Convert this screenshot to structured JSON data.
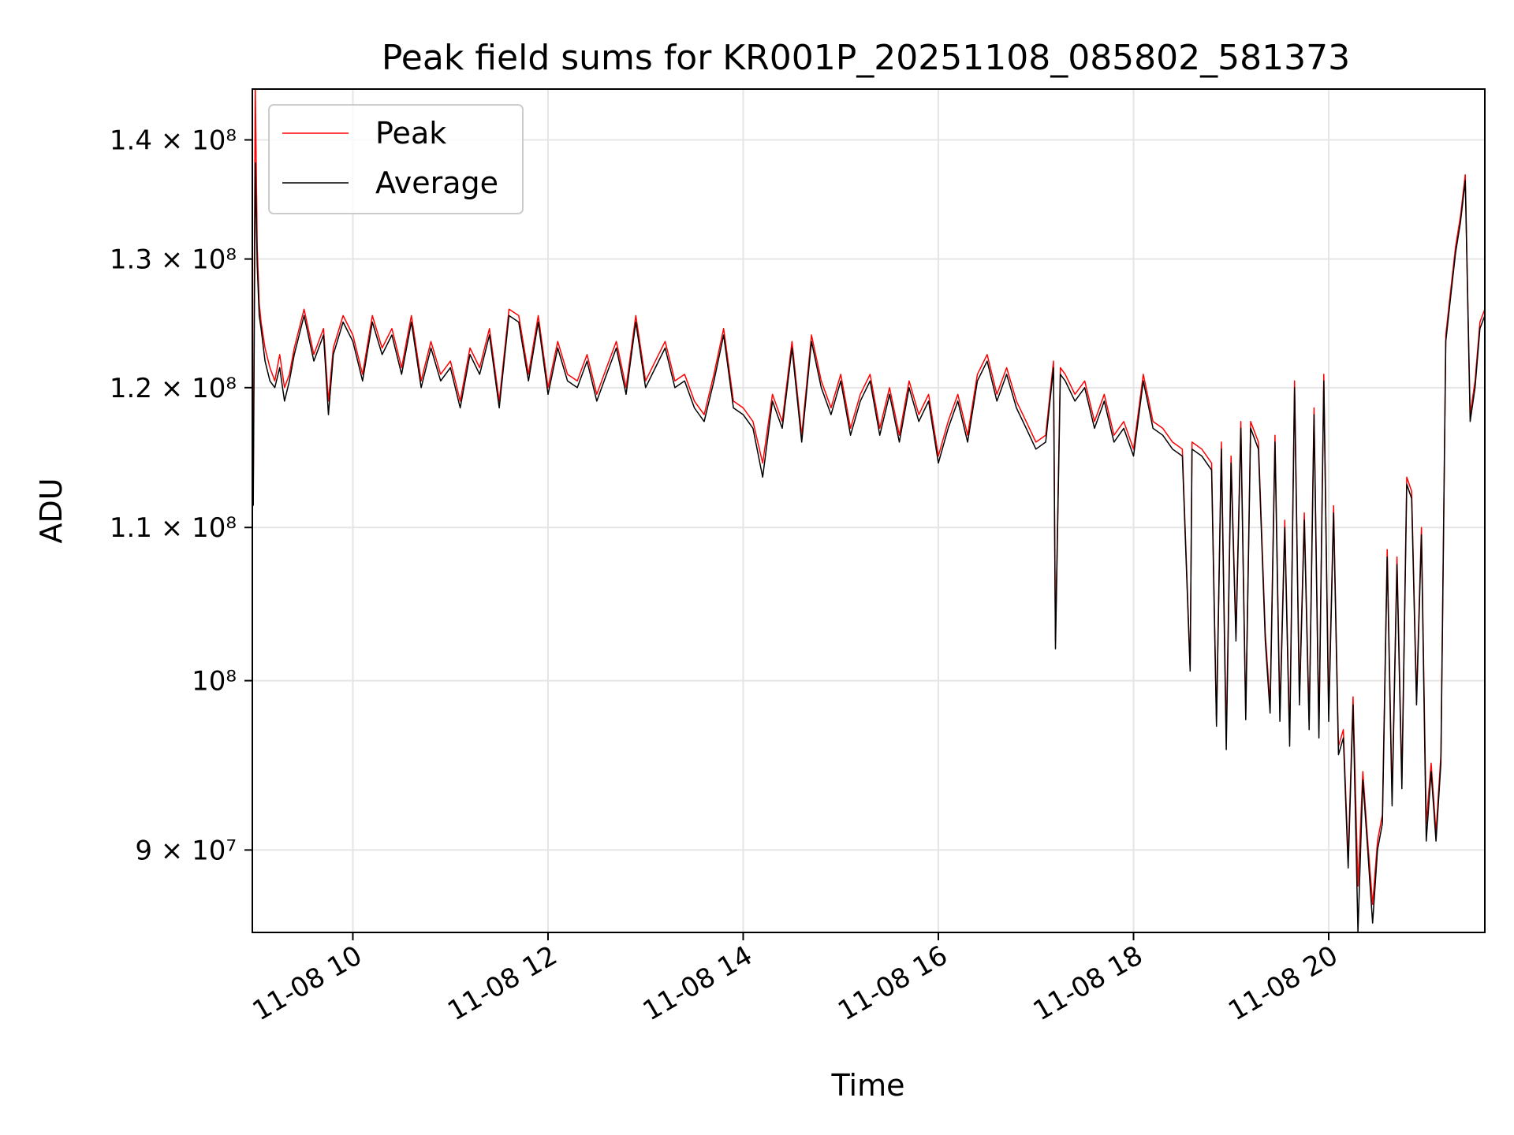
{
  "chart_data": {
    "type": "line",
    "title": "Peak field sums for KR001P_20251108_085802_581373",
    "xlabel": "Time",
    "ylabel": "ADU",
    "yscale": "log",
    "xlim_hours": [
      8.97,
      21.6
    ],
    "ylim": [
      85500000,
      144500000
    ],
    "grid": true,
    "legend_position": "top-left",
    "x_tick_labels": [
      "11-08 10",
      "11-08 12",
      "11-08 14",
      "11-08 16",
      "11-08 18",
      "11-08 20"
    ],
    "x_tick_hours": [
      10,
      12,
      14,
      16,
      18,
      20
    ],
    "y_tick_labels": [
      "9 × 10⁷",
      "10⁸",
      "1.1 × 10⁸",
      "1.2 × 10⁸",
      "1.3 × 10⁸",
      "1.4 × 10⁸"
    ],
    "y_tick_values": [
      90000000,
      100000000,
      110000000,
      120000000,
      130000000,
      140000000
    ],
    "series": [
      {
        "name": "Peak",
        "color": "#ff0000"
      },
      {
        "name": "Average",
        "color": "#000000"
      }
    ],
    "x_hours": [
      8.98,
      9.0,
      9.02,
      9.04,
      9.06,
      9.1,
      9.15,
      9.2,
      9.25,
      9.3,
      9.35,
      9.4,
      9.5,
      9.6,
      9.7,
      9.75,
      9.8,
      9.9,
      10.0,
      10.1,
      10.2,
      10.3,
      10.4,
      10.5,
      10.6,
      10.7,
      10.8,
      10.9,
      11.0,
      11.1,
      11.2,
      11.3,
      11.4,
      11.5,
      11.6,
      11.7,
      11.8,
      11.9,
      12.0,
      12.1,
      12.2,
      12.3,
      12.4,
      12.5,
      12.6,
      12.7,
      12.8,
      12.9,
      13.0,
      13.1,
      13.2,
      13.3,
      13.4,
      13.5,
      13.6,
      13.7,
      13.8,
      13.9,
      14.0,
      14.1,
      14.2,
      14.3,
      14.4,
      14.5,
      14.6,
      14.7,
      14.8,
      14.9,
      15.0,
      15.1,
      15.2,
      15.3,
      15.4,
      15.5,
      15.6,
      15.7,
      15.8,
      15.9,
      16.0,
      16.1,
      16.2,
      16.3,
      16.4,
      16.5,
      16.6,
      16.7,
      16.8,
      16.9,
      17.0,
      17.1,
      17.18,
      17.2,
      17.25,
      17.3,
      17.4,
      17.5,
      17.6,
      17.7,
      17.8,
      17.9,
      18.0,
      18.1,
      18.2,
      18.3,
      18.4,
      18.5,
      18.58,
      18.6,
      18.7,
      18.8,
      18.85,
      18.9,
      18.95,
      19.0,
      19.05,
      19.1,
      19.15,
      19.2,
      19.28,
      19.35,
      19.4,
      19.45,
      19.5,
      19.55,
      19.6,
      19.65,
      19.7,
      19.75,
      19.8,
      19.85,
      19.9,
      19.95,
      20.0,
      20.05,
      20.1,
      20.15,
      20.2,
      20.25,
      20.3,
      20.35,
      20.4,
      20.45,
      20.5,
      20.55,
      20.6,
      20.65,
      20.7,
      20.75,
      20.8,
      20.85,
      20.9,
      20.95,
      21.0,
      21.05,
      21.1,
      21.15,
      21.2,
      21.25,
      21.3,
      21.35,
      21.4,
      21.45,
      21.5,
      21.55,
      21.6
    ],
    "peak_values": [
      112500000,
      145000000,
      131000000,
      126500000,
      125000000,
      123000000,
      121500000,
      120500000,
      122500000,
      120000000,
      121000000,
      123000000,
      126000000,
      122500000,
      124500000,
      119000000,
      123000000,
      125500000,
      124000000,
      121000000,
      125500000,
      123000000,
      124500000,
      121500000,
      125500000,
      120500000,
      123500000,
      121000000,
      122000000,
      119000000,
      123000000,
      121500000,
      124500000,
      119000000,
      126000000,
      125500000,
      121000000,
      125500000,
      120000000,
      123500000,
      121000000,
      120500000,
      122500000,
      119500000,
      121500000,
      123500000,
      120000000,
      125500000,
      120500000,
      122000000,
      123500000,
      120500000,
      121000000,
      119000000,
      118000000,
      121000000,
      124500000,
      119000000,
      118500000,
      117500000,
      114500000,
      119500000,
      117500000,
      123500000,
      116500000,
      124000000,
      120500000,
      118500000,
      121000000,
      117000000,
      119500000,
      121000000,
      117000000,
      120000000,
      116500000,
      120500000,
      118000000,
      119500000,
      115000000,
      117500000,
      119500000,
      116500000,
      121000000,
      122500000,
      119500000,
      121500000,
      119000000,
      117500000,
      116000000,
      116500000,
      122000000,
      102500000,
      121500000,
      121000000,
      119500000,
      120500000,
      117500000,
      119500000,
      116500000,
      117500000,
      115500000,
      121000000,
      117500000,
      117000000,
      116000000,
      115500000,
      100800000,
      116000000,
      115500000,
      114500000,
      97500000,
      116000000,
      96500000,
      115000000,
      103000000,
      117500000,
      98000000,
      117500000,
      116000000,
      103000000,
      98500000,
      116500000,
      98000000,
      110500000,
      96500000,
      120500000,
      99000000,
      111000000,
      97500000,
      118500000,
      97000000,
      121000000,
      98000000,
      111500000,
      96000000,
      97000000,
      89500000,
      99000000,
      88000000,
      94500000,
      90500000,
      87000000,
      90500000,
      92000000,
      108500000,
      93000000,
      108000000,
      94000000,
      113500000,
      112500000,
      99000000,
      110000000,
      91500000,
      95000000,
      91000000,
      95500000,
      124000000,
      127500000,
      131000000,
      133500000,
      137000000,
      118000000,
      120500000,
      125000000,
      126000000
    ],
    "average_values": [
      111500000,
      138000000,
      129500000,
      125500000,
      124500000,
      122000000,
      120500000,
      120000000,
      121500000,
      119000000,
      120500000,
      122500000,
      125500000,
      122000000,
      124000000,
      118000000,
      122500000,
      125000000,
      123500000,
      120500000,
      125000000,
      122500000,
      124000000,
      121000000,
      125000000,
      120000000,
      123000000,
      120500000,
      121500000,
      118500000,
      122500000,
      121000000,
      124000000,
      118500000,
      125500000,
      125000000,
      120500000,
      125000000,
      119500000,
      123000000,
      120500000,
      120000000,
      122000000,
      119000000,
      121000000,
      123000000,
      119500000,
      125000000,
      120000000,
      121500000,
      123000000,
      120000000,
      120500000,
      118500000,
      117500000,
      120500000,
      124000000,
      118500000,
      118000000,
      117000000,
      113500000,
      119000000,
      117000000,
      123000000,
      116000000,
      123500000,
      120000000,
      118000000,
      120500000,
      116500000,
      119000000,
      120500000,
      116500000,
      119500000,
      116000000,
      120000000,
      117500000,
      119000000,
      114500000,
      117000000,
      119000000,
      116000000,
      120500000,
      122000000,
      119000000,
      121000000,
      118500000,
      117000000,
      115500000,
      116000000,
      121500000,
      102000000,
      121000000,
      120500000,
      119000000,
      120000000,
      117000000,
      119000000,
      116000000,
      117000000,
      115000000,
      120500000,
      117000000,
      116500000,
      115500000,
      115000000,
      100600000,
      115500000,
      115000000,
      114000000,
      97200000,
      115500000,
      95800000,
      114500000,
      102500000,
      117000000,
      97600000,
      117000000,
      115500000,
      102500000,
      98000000,
      116000000,
      97500000,
      110000000,
      96000000,
      120000000,
      98500000,
      110500000,
      97000000,
      118000000,
      96500000,
      120500000,
      97500000,
      111000000,
      95500000,
      96500000,
      89000000,
      98500000,
      85500000,
      94000000,
      90000000,
      86000000,
      90000000,
      91500000,
      108000000,
      92500000,
      107500000,
      93500000,
      113000000,
      112000000,
      98500000,
      109500000,
      90500000,
      94500000,
      90500000,
      95000000,
      123500000,
      127000000,
      130500000,
      133000000,
      136500000,
      117500000,
      120000000,
      124500000,
      125500000
    ]
  }
}
